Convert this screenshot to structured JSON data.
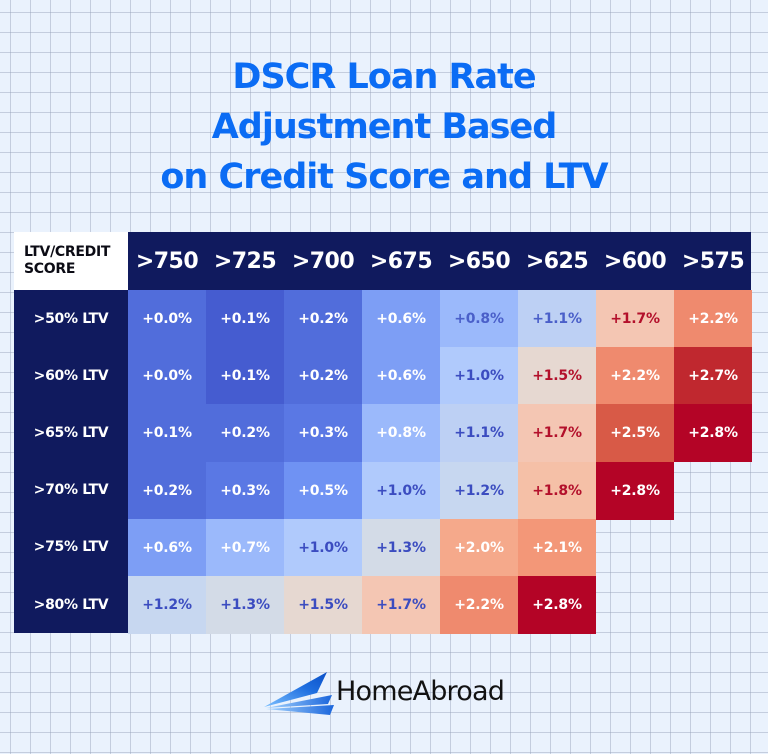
{
  "title": {
    "lines": [
      "DSCR Loan Rate",
      "Adjustment Based",
      "on Credit Score and LTV"
    ],
    "color": "#0b6cf4"
  },
  "table": {
    "corner_label": [
      "LTV/CREDIT",
      "SCORE"
    ],
    "columns": [
      ">750",
      ">725",
      ">700",
      ">675",
      ">650",
      ">625",
      ">600",
      ">575"
    ],
    "rows": [
      {
        "label": ">50% LTV",
        "cells": [
          {
            "v": "+0.0%",
            "bg": "#516ddb",
            "fg": "#ffffff"
          },
          {
            "v": "+0.1%",
            "bg": "#455cd0",
            "fg": "#ffffff"
          },
          {
            "v": "+0.2%",
            "bg": "#516ddb",
            "fg": "#ffffff"
          },
          {
            "v": "+0.6%",
            "bg": "#7d9ef5",
            "fg": "#ffffff"
          },
          {
            "v": "+0.8%",
            "bg": "#9bb9fb",
            "fg": "#4a5fc9"
          },
          {
            "v": "+1.1%",
            "bg": "#bdd0f4",
            "fg": "#4a5fc9"
          },
          {
            "v": "+1.7%",
            "bg": "#f4c6b3",
            "fg": "#b3102b"
          },
          {
            "v": "+2.2%",
            "bg": "#ef8a6e",
            "fg": "#ffffff"
          }
        ]
      },
      {
        "label": ">60% LTV",
        "cells": [
          {
            "v": "+0.0%",
            "bg": "#516ddb",
            "fg": "#ffffff"
          },
          {
            "v": "+0.1%",
            "bg": "#455cd0",
            "fg": "#ffffff"
          },
          {
            "v": "+0.2%",
            "bg": "#516ddb",
            "fg": "#ffffff"
          },
          {
            "v": "+0.6%",
            "bg": "#7d9ef5",
            "fg": "#ffffff"
          },
          {
            "v": "+1.0%",
            "bg": "#b0cafc",
            "fg": "#3b4cc0"
          },
          {
            "v": "+1.5%",
            "bg": "#e6d8d1",
            "fg": "#b3102b"
          },
          {
            "v": "+2.2%",
            "bg": "#ef8a6e",
            "fg": "#ffffff"
          },
          {
            "v": "+2.7%",
            "bg": "#c0282f",
            "fg": "#ffffff"
          }
        ]
      },
      {
        "label": ">65% LTV",
        "cells": [
          {
            "v": "+0.1%",
            "bg": "#516ddb",
            "fg": "#ffffff"
          },
          {
            "v": "+0.2%",
            "bg": "#516ddb",
            "fg": "#ffffff"
          },
          {
            "v": "+0.3%",
            "bg": "#5a78e4",
            "fg": "#ffffff"
          },
          {
            "v": "+0.8%",
            "bg": "#9bb9fb",
            "fg": "#ffffff"
          },
          {
            "v": "+1.1%",
            "bg": "#bdd0f4",
            "fg": "#3b4cc0"
          },
          {
            "v": "+1.7%",
            "bg": "#f4c6b3",
            "fg": "#b3102b"
          },
          {
            "v": "+2.5%",
            "bg": "#d85a47",
            "fg": "#ffffff"
          },
          {
            "v": "+2.8%",
            "bg": "#b40426",
            "fg": "#ffffff"
          }
        ]
      },
      {
        "label": ">70% LTV",
        "cells": [
          {
            "v": "+0.2%",
            "bg": "#516ddb",
            "fg": "#ffffff"
          },
          {
            "v": "+0.3%",
            "bg": "#5a78e4",
            "fg": "#ffffff"
          },
          {
            "v": "+0.5%",
            "bg": "#6f92f3",
            "fg": "#ffffff"
          },
          {
            "v": "+1.0%",
            "bg": "#b0cafc",
            "fg": "#3b4cc0"
          },
          {
            "v": "+1.2%",
            "bg": "#c7d7f0",
            "fg": "#3b4cc0"
          },
          {
            "v": "+1.8%",
            "bg": "#f5c0a7",
            "fg": "#b3102b"
          },
          {
            "v": "+2.8%",
            "bg": "#b40426",
            "fg": "#ffffff"
          },
          null
        ]
      },
      {
        "label": ">75% LTV",
        "cells": [
          {
            "v": "+0.6%",
            "bg": "#7d9ef5",
            "fg": "#ffffff"
          },
          {
            "v": "+0.7%",
            "bg": "#9bb9fb",
            "fg": "#ffffff"
          },
          {
            "v": "+1.0%",
            "bg": "#b0cafc",
            "fg": "#3b4cc0"
          },
          {
            "v": "+1.3%",
            "bg": "#d3dbe7",
            "fg": "#3b4cc0"
          },
          {
            "v": "+2.0%",
            "bg": "#f5a98b",
            "fg": "#ffffff"
          },
          {
            "v": "+2.1%",
            "bg": "#f39778",
            "fg": "#ffffff"
          },
          null,
          null
        ]
      },
      {
        "label": ">80% LTV",
        "cells": [
          {
            "v": "+1.2%",
            "bg": "#c7d7f0",
            "fg": "#3b4cc0"
          },
          {
            "v": "+1.3%",
            "bg": "#d3dbe7",
            "fg": "#3b4cc0"
          },
          {
            "v": "+1.5%",
            "bg": "#e6d8d1",
            "fg": "#3b4cc0"
          },
          {
            "v": "+1.7%",
            "bg": "#f4c6b3",
            "fg": "#3b4cc0"
          },
          {
            "v": "+2.2%",
            "bg": "#ef8a6e",
            "fg": "#ffffff"
          },
          {
            "v": "+2.8%",
            "bg": "#b40426",
            "fg": "#ffffff"
          },
          null,
          null
        ]
      }
    ],
    "header_bg": "#101a5e"
  },
  "logo": {
    "text": "HomeAbroad",
    "icon": "paper-plane-wings-icon"
  },
  "chart_data": {
    "type": "heatmap",
    "title": "DSCR Loan Rate Adjustment Based on Credit Score and LTV",
    "xlabel": "Credit Score",
    "ylabel": "LTV",
    "corner_label": "LTV/CREDIT SCORE",
    "x": [
      ">750",
      ">725",
      ">700",
      ">675",
      ">650",
      ">625",
      ">600",
      ">575"
    ],
    "y": [
      ">50% LTV",
      ">60% LTV",
      ">65% LTV",
      ">70% LTV",
      ">75% LTV",
      ">80% LTV"
    ],
    "unit": "% rate adjustment",
    "values": [
      [
        0.0,
        0.1,
        0.2,
        0.6,
        0.8,
        1.1,
        1.7,
        2.2
      ],
      [
        0.0,
        0.1,
        0.2,
        0.6,
        1.0,
        1.5,
        2.2,
        2.7
      ],
      [
        0.1,
        0.2,
        0.3,
        0.8,
        1.1,
        1.7,
        2.5,
        2.8
      ],
      [
        0.2,
        0.3,
        0.5,
        1.0,
        1.2,
        1.8,
        2.8,
        null
      ],
      [
        0.6,
        0.7,
        1.0,
        1.3,
        2.0,
        2.1,
        null,
        null
      ],
      [
        1.2,
        1.3,
        1.5,
        1.7,
        2.2,
        2.8,
        null,
        null
      ]
    ],
    "colormap": "coolwarm (blue = low, red = high)",
    "source_brand": "HomeAbroad"
  }
}
